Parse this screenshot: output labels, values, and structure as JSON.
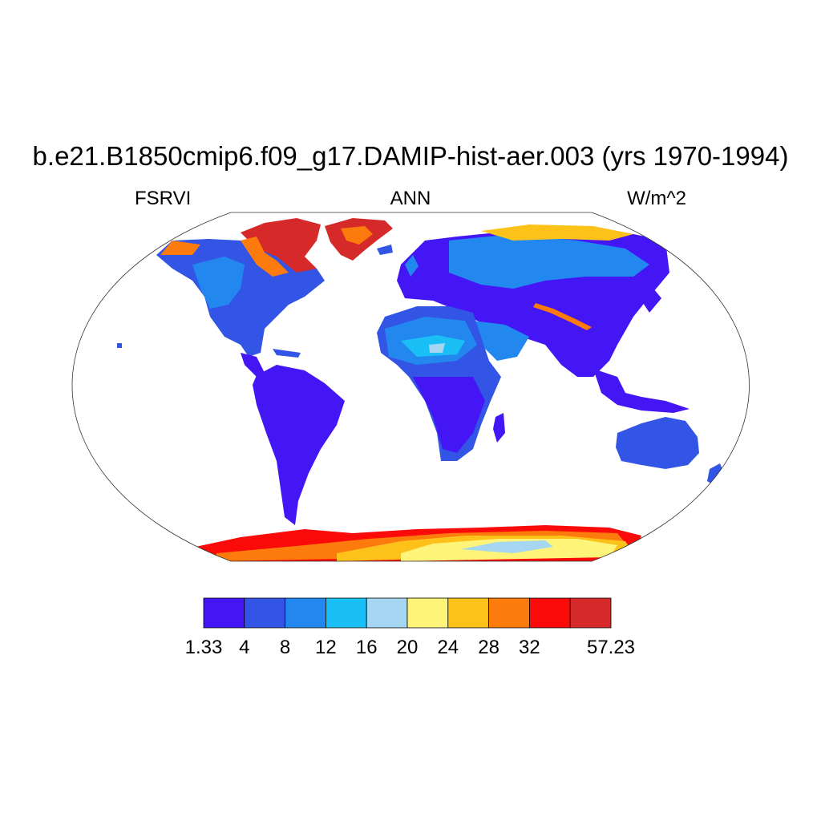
{
  "title": "b.e21.B1850cmip6.f09_g17.DAMIP-hist-aer.003 (yrs 1970-1994)",
  "left_label": "FSRVI",
  "center_label": "ANN",
  "right_label": "W/m^2",
  "colorbar": {
    "colors": [
      "#4416f6",
      "#3355e6",
      "#2288f0",
      "#1ac0f5",
      "#a5d6f2",
      "#fff47a",
      "#fdc21a",
      "#fd7a0c",
      "#fb0a0a",
      "#d62a2a"
    ],
    "labels": [
      "1.33",
      "4",
      "8",
      "12",
      "16",
      "20",
      "24",
      "28",
      "32",
      "57.23"
    ]
  },
  "land_colors": {
    "low": "#4416f6",
    "mid": "#3355e6",
    "blue": "#2288f0",
    "cyan": "#1ac0f5",
    "light": "#a5d6f2",
    "yellow": "#fff47a",
    "orange": "#fdc21a",
    "darkorange": "#fd7a0c",
    "red": "#fb0a0a",
    "darkred": "#d62a2a"
  }
}
